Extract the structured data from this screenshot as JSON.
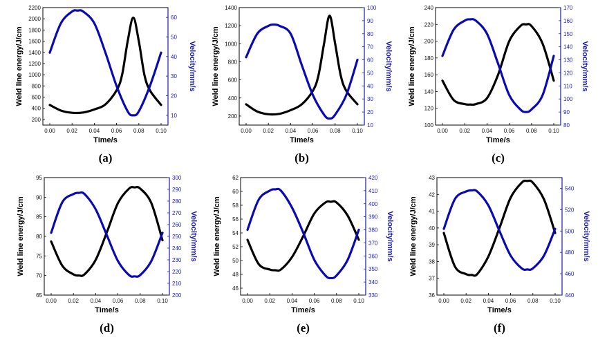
{
  "chart_data": [
    {
      "type": "line",
      "panel_label": "(a)",
      "xlabel": "Time/s",
      "ylabel_left": "Weld line energy/J/cm",
      "ylabel_right": "Velocity/mm/s",
      "x_ticks": [
        "0.00",
        "0.02",
        "0.04",
        "0.06",
        "0.08",
        "0.10"
      ],
      "xlim": [
        0,
        0.1
      ],
      "ylim_left": [
        100,
        2200
      ],
      "yticks_left": [
        "200",
        "400",
        "600",
        "800",
        "1000",
        "1200",
        "1400",
        "1600",
        "1800",
        "2000",
        "2200"
      ],
      "ylim_right": [
        5,
        65
      ],
      "yticks_right": [
        "10",
        "20",
        "30",
        "40",
        "50",
        "60"
      ],
      "series": [
        {
          "axis": "left",
          "color": "#000000",
          "x": [
            0,
            0.01,
            0.02,
            0.03,
            0.04,
            0.05,
            0.06,
            0.065,
            0.07,
            0.075,
            0.08,
            0.085,
            0.09,
            0.1
          ],
          "y": [
            460,
            360,
            320,
            325,
            380,
            470,
            720,
            1000,
            1600,
            2020,
            1600,
            1000,
            720,
            460
          ]
        },
        {
          "axis": "right",
          "color": "#0a0ab5",
          "x": [
            0,
            0.01,
            0.02,
            0.025,
            0.03,
            0.04,
            0.05,
            0.06,
            0.07,
            0.075,
            0.08,
            0.09,
            0.1
          ],
          "y": [
            42,
            57,
            63,
            63.5,
            63,
            57,
            42,
            25,
            12,
            10,
            12,
            25,
            42
          ]
        }
      ]
    },
    {
      "type": "line",
      "panel_label": "(b)",
      "xlabel": "Time/s",
      "ylabel_left": "Weld line energy/J/cm",
      "ylabel_right": "Velocity/mm/s",
      "x_ticks": [
        "0.00",
        "0.02",
        "0.04",
        "0.06",
        "0.08",
        "0.10"
      ],
      "xlim": [
        0,
        0.1
      ],
      "ylim_left": [
        100,
        1400
      ],
      "yticks_left": [
        "200",
        "400",
        "600",
        "800",
        "1000",
        "1200",
        "1400"
      ],
      "ylim_right": [
        10,
        100
      ],
      "yticks_right": [
        "10",
        "20",
        "30",
        "40",
        "50",
        "60",
        "70",
        "80",
        "90",
        "100"
      ],
      "series": [
        {
          "axis": "left",
          "color": "#000000",
          "x": [
            0,
            0.01,
            0.02,
            0.03,
            0.04,
            0.05,
            0.06,
            0.065,
            0.07,
            0.075,
            0.08,
            0.085,
            0.09,
            0.1
          ],
          "y": [
            330,
            250,
            220,
            225,
            265,
            330,
            480,
            650,
            1000,
            1310,
            1000,
            650,
            480,
            330
          ]
        },
        {
          "axis": "right",
          "color": "#0a0ab5",
          "x": [
            0,
            0.01,
            0.02,
            0.025,
            0.03,
            0.04,
            0.05,
            0.06,
            0.07,
            0.075,
            0.08,
            0.09,
            0.1
          ],
          "y": [
            62,
            80,
            86,
            87,
            86,
            80,
            56,
            33,
            18,
            15,
            18,
            33,
            60
          ]
        }
      ]
    },
    {
      "type": "line",
      "panel_label": "(c)",
      "xlabel": "Time/s",
      "ylabel_left": "Weld line energy/J/cm",
      "ylabel_right": "Velocity/mm/s",
      "x_ticks": [
        "0.00",
        "0.02",
        "0.04",
        "0.06",
        "0.08",
        "0.10"
      ],
      "xlim": [
        0,
        0.1
      ],
      "ylim_left": [
        100,
        240
      ],
      "yticks_left": [
        "100",
        "120",
        "140",
        "160",
        "180",
        "200",
        "220",
        "240"
      ],
      "ylim_right": [
        80,
        170
      ],
      "yticks_right": [
        "80",
        "90",
        "100",
        "110",
        "120",
        "130",
        "140",
        "150",
        "160",
        "170"
      ],
      "series": [
        {
          "axis": "left",
          "color": "#000000",
          "x": [
            0,
            0.01,
            0.02,
            0.025,
            0.03,
            0.04,
            0.05,
            0.06,
            0.07,
            0.075,
            0.08,
            0.09,
            0.1
          ],
          "y": [
            153,
            130,
            125,
            124.5,
            125,
            132,
            160,
            200,
            218,
            220,
            218,
            197,
            153
          ]
        },
        {
          "axis": "right",
          "color": "#0a0ab5",
          "x": [
            0,
            0.01,
            0.02,
            0.025,
            0.03,
            0.04,
            0.05,
            0.06,
            0.07,
            0.075,
            0.08,
            0.09,
            0.1
          ],
          "y": [
            133,
            153,
            160,
            161,
            160,
            150,
            127,
            103,
            92,
            90,
            92,
            103,
            133
          ]
        }
      ]
    },
    {
      "type": "line",
      "panel_label": "(d)",
      "xlabel": "Time/s",
      "ylabel_left": "Weld line energy/J/cm",
      "ylabel_right": "Velocity/mm/s",
      "x_ticks": [
        "0.00",
        "0.02",
        "0.04",
        "0.06",
        "0.08",
        "0.10"
      ],
      "xlim": [
        0,
        0.1
      ],
      "ylim_left": [
        65,
        95
      ],
      "yticks_left": [
        "65",
        "70",
        "75",
        "80",
        "85",
        "90",
        "95"
      ],
      "ylim_right": [
        200,
        300
      ],
      "yticks_right": [
        "200",
        "210",
        "220",
        "230",
        "240",
        "250",
        "260",
        "270",
        "280",
        "290",
        "300"
      ],
      "series": [
        {
          "axis": "left",
          "color": "#000000",
          "x": [
            0,
            0.01,
            0.02,
            0.025,
            0.03,
            0.04,
            0.05,
            0.06,
            0.07,
            0.075,
            0.08,
            0.09,
            0.1
          ],
          "y": [
            78.7,
            72.5,
            70.3,
            70,
            70.3,
            74,
            81,
            88.5,
            92.2,
            92.5,
            92.2,
            88.5,
            79
          ]
        },
        {
          "axis": "right",
          "color": "#0a0ab5",
          "x": [
            0,
            0.01,
            0.02,
            0.025,
            0.03,
            0.04,
            0.05,
            0.06,
            0.07,
            0.075,
            0.08,
            0.09,
            0.1
          ],
          "y": [
            253,
            279,
            286,
            287,
            286,
            273,
            251,
            229,
            217,
            216,
            217,
            229,
            253
          ]
        }
      ]
    },
    {
      "type": "line",
      "panel_label": "(e)",
      "xlabel": "Time/s",
      "ylabel_left": "Weld line energy/J/cm",
      "ylabel_right": "Velocity/mm/s",
      "x_ticks": [
        "0.00",
        "0.02",
        "0.04",
        "0.06",
        "0.08",
        "0.10"
      ],
      "xlim": [
        0,
        0.1
      ],
      "ylim_left": [
        45,
        62
      ],
      "yticks_left": [
        "46",
        "48",
        "50",
        "52",
        "54",
        "56",
        "58",
        "60",
        "62"
      ],
      "ylim_right": [
        330,
        420
      ],
      "yticks_right": [
        "330",
        "340",
        "350",
        "360",
        "370",
        "380",
        "390",
        "400",
        "410",
        "420"
      ],
      "series": [
        {
          "axis": "left",
          "color": "#000000",
          "x": [
            0,
            0.01,
            0.02,
            0.025,
            0.03,
            0.04,
            0.05,
            0.06,
            0.07,
            0.075,
            0.08,
            0.09,
            0.1
          ],
          "y": [
            53,
            49.5,
            48.7,
            48.6,
            48.7,
            50.5,
            53.5,
            56.8,
            58.4,
            58.5,
            58.4,
            56.5,
            53
          ]
        },
        {
          "axis": "right",
          "color": "#0a0ab5",
          "x": [
            0,
            0.01,
            0.02,
            0.025,
            0.03,
            0.04,
            0.05,
            0.06,
            0.07,
            0.075,
            0.08,
            0.09,
            0.1
          ],
          "y": [
            380,
            403,
            410,
            411,
            410,
            397,
            378,
            357,
            345,
            343,
            345,
            357,
            380
          ]
        }
      ]
    },
    {
      "type": "line",
      "panel_label": "(f)",
      "xlabel": "Time/s",
      "ylabel_left": "Weld line energy/J/cm",
      "ylabel_right": "Velocity/mm/s",
      "x_ticks": [
        "0.00",
        "0.02",
        "0.04",
        "0.06",
        "0.08",
        "0.10"
      ],
      "xlim": [
        0,
        0.1
      ],
      "ylim_left": [
        36,
        43
      ],
      "yticks_left": [
        "36",
        "37",
        "38",
        "39",
        "40",
        "41",
        "42",
        "43"
      ],
      "ylim_right": [
        440,
        550
      ],
      "yticks_right": [
        "440",
        "460",
        "480",
        "500",
        "520",
        "540"
      ],
      "series": [
        {
          "axis": "left",
          "color": "#000000",
          "x": [
            0,
            0.01,
            0.02,
            0.025,
            0.03,
            0.04,
            0.05,
            0.06,
            0.07,
            0.075,
            0.08,
            0.09,
            0.1
          ],
          "y": [
            39.7,
            37.7,
            37.25,
            37.2,
            37.25,
            38.3,
            40,
            41.8,
            42.7,
            42.8,
            42.7,
            41.7,
            39.7
          ]
        },
        {
          "axis": "right",
          "color": "#0a0ab5",
          "x": [
            0,
            0.01,
            0.02,
            0.025,
            0.03,
            0.04,
            0.05,
            0.06,
            0.07,
            0.075,
            0.08,
            0.09,
            0.1
          ],
          "y": [
            502,
            530,
            537,
            538,
            537,
            524,
            500,
            477,
            465,
            464,
            465,
            477,
            502
          ]
        }
      ]
    }
  ]
}
